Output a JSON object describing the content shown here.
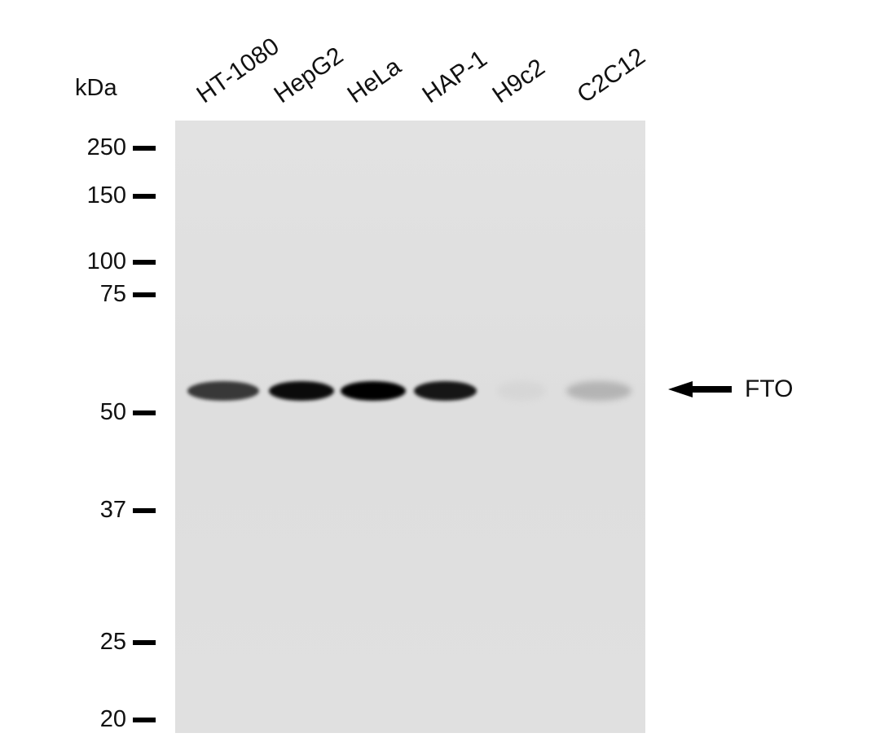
{
  "unit_label": "kDa",
  "lanes": [
    "HT-1080",
    "HepG2",
    "HeLa",
    "HAP-1",
    "H9c2",
    "C2C12"
  ],
  "markers": [
    "250",
    "150",
    "100",
    "75",
    "50",
    "37",
    "25",
    "20"
  ],
  "target_label": "FTO",
  "band_intensity": [
    0.75,
    0.95,
    1.0,
    0.9,
    0.05,
    0.2
  ]
}
